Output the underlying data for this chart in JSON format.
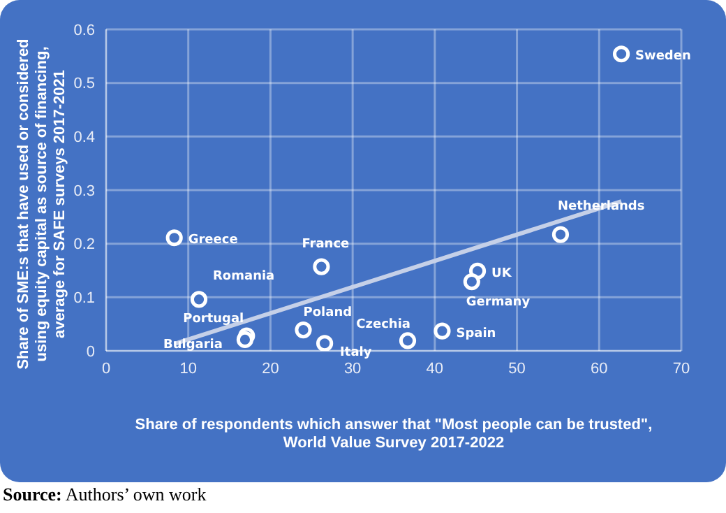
{
  "chart_data": {
    "type": "scatter",
    "xlabel": "Share of respondents which answer that \"Most people can be trusted\",\nWorld Value Survey 2017-2022",
    "ylabel": "Share of SME:s that have used or considered\nusing equity capital as source of financing,\naverage for SAFE surveys 2017-2021",
    "xlim": [
      0,
      70
    ],
    "xticks": [
      0,
      10,
      20,
      30,
      40,
      50,
      60,
      70
    ],
    "ylim": [
      0,
      0.6
    ],
    "yticks": [
      0,
      0.1,
      0.2,
      0.3,
      0.4,
      0.5,
      0.6
    ],
    "grid": true,
    "series": [
      {
        "color": "#4472c4",
        "marker": "circle",
        "x": [
          62.7,
          55.3,
          8.3,
          26.2,
          45.2,
          44.5,
          11.3,
          17.1,
          16.9,
          24.0,
          26.6,
          36.7,
          40.9
        ],
        "values": [
          0.554,
          0.217,
          0.211,
          0.157,
          0.149,
          0.129,
          0.096,
          0.028,
          0.021,
          0.039,
          0.014,
          0.019,
          0.037
        ]
      },
      {
        "type": "line",
        "color": "#c5d0e8",
        "marker": "none",
        "x": [
          8.3,
          62.7
        ],
        "values": [
          0.013,
          0.279
        ]
      }
    ],
    "annotations": [
      {
        "text": "Sweden",
        "x": 62.7,
        "y": 0.554
      },
      {
        "text": "Netherlands",
        "x": 55.3,
        "y": 0.217
      },
      {
        "text": "Greece",
        "x": 8.3,
        "y": 0.211
      },
      {
        "text": "France",
        "x": 26.2,
        "y": 0.157
      },
      {
        "text": "UK",
        "x": 45.2,
        "y": 0.149
      },
      {
        "text": "Germany",
        "x": 44.5,
        "y": 0.129
      },
      {
        "text": "Romania",
        "x": 11.3,
        "y": 0.096
      },
      {
        "text": "Portugal",
        "x": 17.1,
        "y": 0.028
      },
      {
        "text": "Bulgaria",
        "x": 16.9,
        "y": 0.021
      },
      {
        "text": "Poland",
        "x": 24.0,
        "y": 0.039
      },
      {
        "text": "Italy",
        "x": 26.6,
        "y": 0.014
      },
      {
        "text": "Czechia",
        "x": 36.7,
        "y": 0.019
      },
      {
        "text": "Spain",
        "x": 40.9,
        "y": 0.037
      },
      "Source: Authors’ own work"
    ]
  }
}
